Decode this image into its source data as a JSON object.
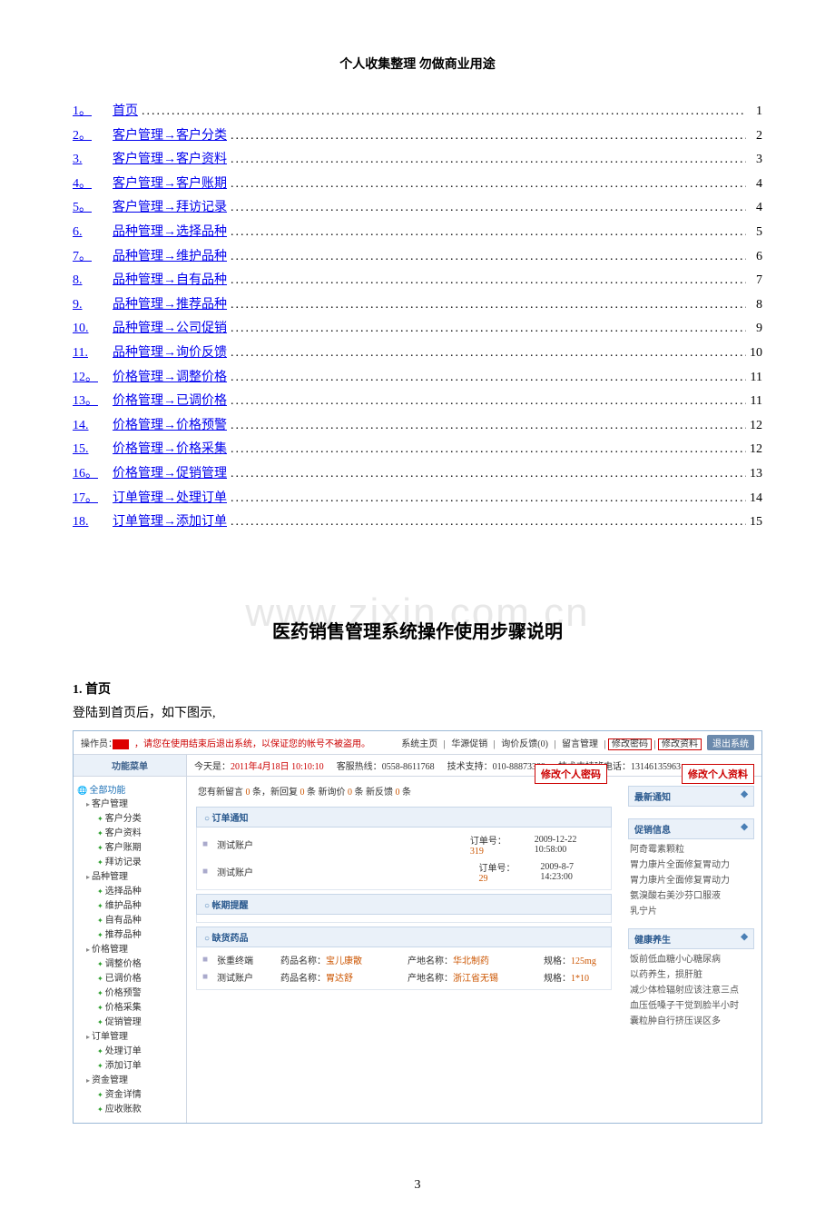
{
  "header": "个人收集整理  勿做商业用途",
  "watermark": "www.zixin.com.cn",
  "toc": [
    {
      "num": "1。",
      "title": "首页",
      "page": "1"
    },
    {
      "num": "2。",
      "title": "客户管理→客户分类",
      "page": "2"
    },
    {
      "num": "3.",
      "title": "客户管理→客户资料",
      "page": "3"
    },
    {
      "num": "4。",
      "title": "客户管理→客户账期",
      "page": "4"
    },
    {
      "num": "5。",
      "title": "客户管理→拜访记录",
      "page": "4"
    },
    {
      "num": "6.",
      "title": "品种管理→选择品种",
      "page": "5"
    },
    {
      "num": "7。",
      "title": "品种管理→维护品种",
      "page": "6"
    },
    {
      "num": "8.",
      "title": "品种管理→自有品种",
      "page": "7"
    },
    {
      "num": "9.",
      "title": "品种管理→推荐品种",
      "page": "8"
    },
    {
      "num": "10.",
      "title": "品种管理→公司促销",
      "page": "9"
    },
    {
      "num": "11.",
      "title": "品种管理→询价反馈",
      "page": "10"
    },
    {
      "num": "12。",
      "title": "价格管理→调整价格",
      "page": "11"
    },
    {
      "num": "13。",
      "title": "价格管理→已调价格",
      "page": "11"
    },
    {
      "num": "14.",
      "title": "价格管理→价格预警",
      "page": "12"
    },
    {
      "num": "15.",
      "title": "价格管理→价格采集",
      "page": "12"
    },
    {
      "num": "16。",
      "title": "价格管理→促销管理",
      "page": "13"
    },
    {
      "num": "17。",
      "title": "订单管理→处理订单",
      "page": "14"
    },
    {
      "num": "18.",
      "title": "订单管理→添加订单",
      "page": "15"
    }
  ],
  "doc_title": "医药销售管理系统操作使用步骤说明",
  "section1": {
    "head": "1.    首页",
    "text": "登陆到首页后，如下图示,"
  },
  "shot": {
    "top": {
      "user_label": "操作员：",
      "warn": "，请您在使用结束后退出系统，以保证您的帐号不被盗用。",
      "nav": [
        "系统主页",
        "华源促销",
        "询价反馈(0)",
        "留言管理"
      ],
      "boxed": [
        "修改密码",
        "修改资料"
      ],
      "exit": "退出系统"
    },
    "row2": {
      "menu": "功能菜单",
      "today_label": "今天是：",
      "today_val": "2011年4月18日 10:10:10",
      "hotline_label": "客服热线：",
      "hotline_val": "0558-8611768",
      "tech_label": "技术支持：",
      "tech_val": "010-88873389",
      "techcall_label": "技术支持班电话：",
      "techcall_val": "13146135963"
    },
    "callouts": {
      "pwd": "修改个人密码",
      "info": "修改个人资料"
    },
    "sidebar": {
      "root": "全部功能",
      "groups": [
        {
          "name": "客户管理",
          "items": [
            "客户分类",
            "客户资料",
            "客户账期",
            "拜访记录"
          ]
        },
        {
          "name": "品种管理",
          "items": [
            "选择品种",
            "维护品种",
            "自有品种",
            "推荐品种"
          ]
        },
        {
          "name": "价格管理",
          "items": [
            "调整价格",
            "已调价格",
            "价格预警",
            "价格采集",
            "促销管理"
          ]
        },
        {
          "name": "订单管理",
          "items": [
            "处理订单",
            "添加订单"
          ]
        },
        {
          "name": "资金管理",
          "items": [
            "资金详情",
            "应收账款"
          ]
        }
      ]
    },
    "center": {
      "msg": "您有新留言 0 条，新回复 0 条  新询价 0 条  新反馈 0 条",
      "order_notice": {
        "head": "订单通知",
        "rows": [
          {
            "name": "测试账户",
            "ord_lbl": "订单号：",
            "ord": "319",
            "time": "2009-12-22 10:58:00"
          },
          {
            "name": "测试账户",
            "ord_lbl": "订单号：",
            "ord": "29",
            "time": "2009-8-7 14:23:00"
          }
        ]
      },
      "credit": {
        "head": "帐期提醒"
      },
      "stock": {
        "head": "缺货药品",
        "rows": [
          {
            "name": "张重终端",
            "d_lbl": "药品名称：",
            "d": "宝儿康散",
            "p_lbl": "产地名称：",
            "p": "华北制药",
            "s_lbl": "规格：",
            "s": "125mg"
          },
          {
            "name": "测试账户",
            "d_lbl": "药品名称：",
            "d": "胃达舒",
            "p_lbl": "产地名称：",
            "p": "浙江省无锡",
            "s_lbl": "规格：",
            "s": "1*10"
          }
        ]
      }
    },
    "right": [
      {
        "head": "最新通知",
        "items": []
      },
      {
        "head": "促销信息",
        "items": [
          "阿奇霉素颗粒",
          "胃力康片全面修复胃动力",
          "胃力康片全面修复胃动力",
          "氨溴酸右美沙芬口服液",
          "乳宁片"
        ]
      },
      {
        "head": "健康养生",
        "items": [
          "饭前低血糖小心糖尿病",
          "以药养生，损肝脏",
          "减少体检辐射应该注意三点",
          "血压低嗓子干觉到脸半小时",
          "囊粒肿自行挤压误区多"
        ]
      }
    ]
  },
  "page_num": "3"
}
